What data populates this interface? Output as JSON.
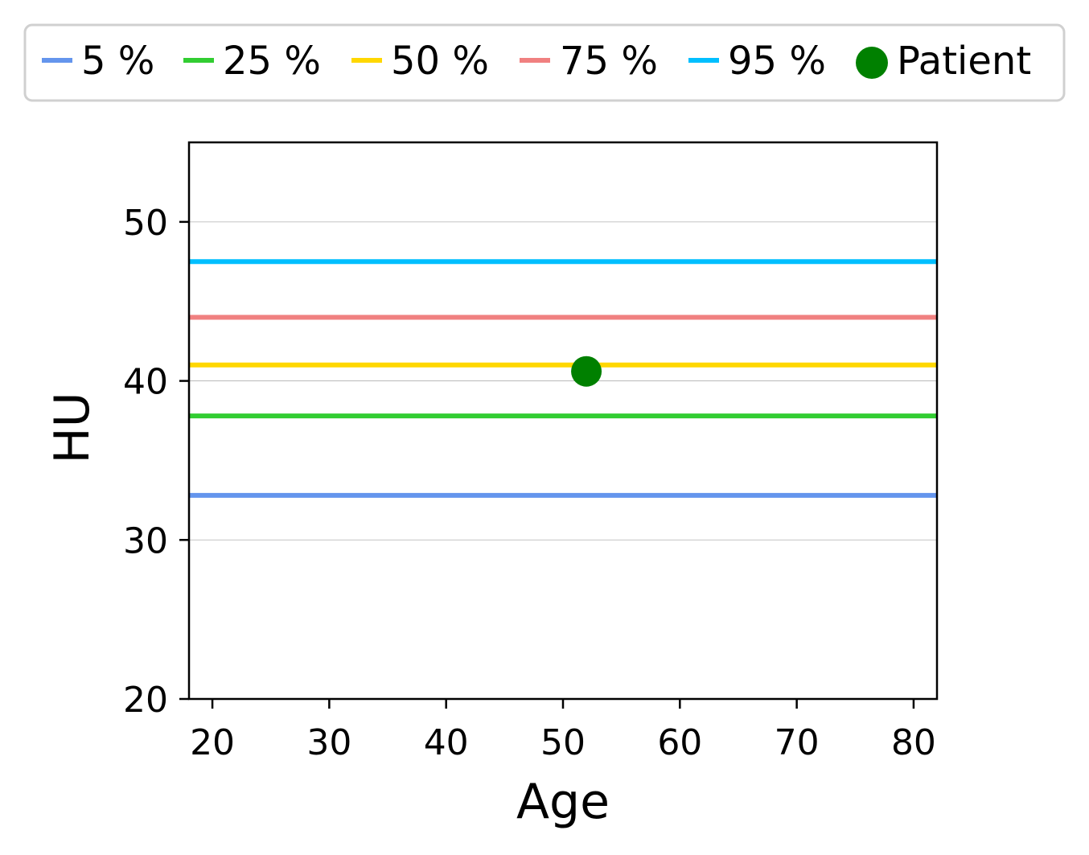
{
  "chart_data": {
    "type": "line",
    "title": "",
    "xlabel": "Age",
    "ylabel": "HU",
    "xlim": [
      18,
      82
    ],
    "ylim": [
      20,
      55
    ],
    "xticks": [
      20,
      30,
      40,
      50,
      60,
      70,
      80
    ],
    "yticks": [
      20,
      30,
      40,
      50
    ],
    "x_tick_labels": [
      "20",
      "30",
      "40",
      "50",
      "60",
      "70",
      "80"
    ],
    "y_tick_labels": [
      "20",
      "30",
      "40",
      "50"
    ],
    "grid": "horizontal",
    "legend_position": "top",
    "series": [
      {
        "name": "5 %",
        "color": "#6495ed",
        "y": 32.8
      },
      {
        "name": "25 %",
        "color": "#32cd32",
        "y": 37.8
      },
      {
        "name": "50 %",
        "color": "#ffd700",
        "y": 41.0
      },
      {
        "name": "75 %",
        "color": "#f08080",
        "y": 44.0
      },
      {
        "name": "95 %",
        "color": "#00bfff",
        "y": 47.5
      }
    ],
    "points": [
      {
        "name": "Patient",
        "color": "#008000",
        "x": 52,
        "y": 40.6
      }
    ]
  }
}
